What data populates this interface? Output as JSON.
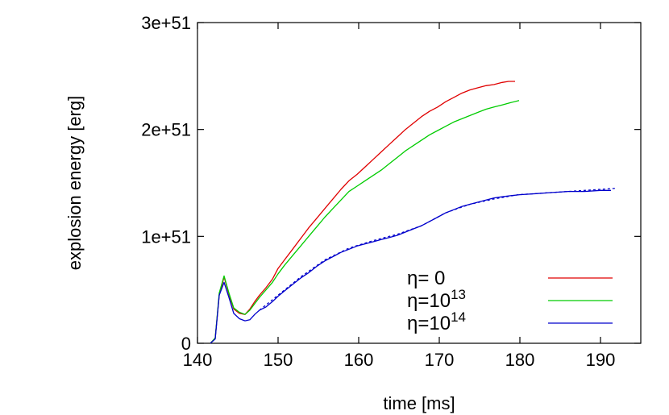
{
  "chart_data": {
    "type": "line",
    "title": "",
    "xlabel": "time [ms]",
    "ylabel": "explosion energy [erg]",
    "xlim": [
      140,
      195
    ],
    "ylim": [
      0,
      3e+51
    ],
    "xticks": [
      140,
      150,
      160,
      170,
      180,
      190
    ],
    "yticks": [
      {
        "value": 0,
        "label": "0"
      },
      {
        "value": 1e+51,
        "label": "1e+51"
      },
      {
        "value": 2e+51,
        "label": "2e+51"
      },
      {
        "value": 3e+51,
        "label": "3e+51"
      }
    ],
    "grid": false,
    "legend_position": "bottom-right",
    "series": [
      {
        "name": "η= 0",
        "label_parts": {
          "base": "η= 0",
          "sup": ""
        },
        "color": "#e00000",
        "dash": false,
        "x": [
          141.6,
          142.2,
          142.7,
          143.3,
          143.9,
          144.5,
          145.2,
          145.9,
          146.5,
          147.1,
          147.7,
          148.5,
          149.3,
          150.0,
          150.8,
          151.8,
          152.8,
          153.8,
          154.8,
          155.8,
          156.8,
          157.8,
          158.8,
          159.8,
          160.8,
          161.8,
          162.8,
          163.8,
          164.8,
          165.8,
          166.8,
          167.8,
          168.8,
          169.8,
          170.8,
          171.8,
          172.8,
          173.8,
          174.8,
          175.8,
          176.8,
          177.8,
          178.6,
          179.4
        ],
        "values": [
          0.0,
          5e+49,
          4.5e+50,
          6.2e+50,
          4.6e+50,
          3.2e+50,
          2.8e+50,
          2.7e+50,
          3.2e+50,
          3.9e+50,
          4.5e+50,
          5.2e+50,
          6e+50,
          7e+50,
          7.8e+50,
          8.8e+50,
          9.8e+50,
          1.08e+51,
          1.17e+51,
          1.26e+51,
          1.35e+51,
          1.44e+51,
          1.52e+51,
          1.58e+51,
          1.65e+51,
          1.72e+51,
          1.79e+51,
          1.86e+51,
          1.93e+51,
          2e+51,
          2.06e+51,
          2.12e+51,
          2.17e+51,
          2.21e+51,
          2.26e+51,
          2.3e+51,
          2.34e+51,
          2.37e+51,
          2.39e+51,
          2.41e+51,
          2.42e+51,
          2.44e+51,
          2.45e+51,
          2.45e+51
        ]
      },
      {
        "name": "η=10^13",
        "label_parts": {
          "base": "η=10",
          "sup": "13"
        },
        "color": "#00cc00",
        "dash": false,
        "x": [
          141.6,
          142.2,
          142.7,
          143.3,
          143.9,
          144.5,
          145.2,
          145.9,
          146.5,
          147.1,
          147.7,
          148.5,
          149.3,
          150.0,
          150.8,
          151.8,
          152.8,
          153.8,
          154.8,
          155.8,
          156.8,
          157.8,
          158.8,
          159.8,
          160.8,
          161.8,
          162.8,
          163.8,
          164.8,
          165.8,
          166.8,
          167.8,
          168.8,
          169.8,
          170.8,
          171.8,
          172.8,
          173.8,
          174.8,
          175.8,
          176.8,
          177.8,
          178.8,
          179.9
        ],
        "values": [
          0.0,
          5e+49,
          4.7e+50,
          6.3e+50,
          4.7e+50,
          3.3e+50,
          2.9e+50,
          2.7e+50,
          3.1e+50,
          3.7e+50,
          4.3e+50,
          5e+50,
          5.7e+50,
          6.5e+50,
          7.3e+50,
          8.2e+50,
          9.1e+50,
          1e+51,
          1.09e+51,
          1.18e+51,
          1.26e+51,
          1.34e+51,
          1.42e+51,
          1.47e+51,
          1.52e+51,
          1.57e+51,
          1.62e+51,
          1.68e+51,
          1.74e+51,
          1.8e+51,
          1.85e+51,
          1.9e+51,
          1.95e+51,
          1.99e+51,
          2.03e+51,
          2.07e+51,
          2.1e+51,
          2.13e+51,
          2.16e+51,
          2.19e+51,
          2.21e+51,
          2.23e+51,
          2.25e+51,
          2.27e+51
        ]
      },
      {
        "name": "η=10^14",
        "label_parts": {
          "base": "η=10",
          "sup": "14"
        },
        "color": "#0000cc",
        "dash": false,
        "x": [
          141.6,
          142.2,
          142.7,
          143.3,
          143.9,
          144.5,
          145.2,
          145.9,
          146.5,
          147.1,
          147.7,
          148.5,
          149.3,
          150.0,
          150.8,
          151.8,
          152.8,
          153.8,
          154.8,
          155.8,
          156.8,
          157.8,
          158.8,
          159.8,
          160.8,
          161.8,
          162.8,
          163.8,
          164.8,
          165.8,
          166.8,
          167.8,
          168.8,
          169.8,
          170.8,
          171.8,
          172.8,
          173.8,
          174.8,
          175.8,
          176.8,
          177.8,
          178.8,
          180.0,
          182.0,
          184.0,
          186.0,
          188.0,
          190.0,
          191.3
        ],
        "values": [
          0.0,
          4e+49,
          4.5e+50,
          5.7e+50,
          4.3e+50,
          2.8e+50,
          2.3e+50,
          2.1e+50,
          2.2e+50,
          2.7e+50,
          3.1e+50,
          3.4e+50,
          3.9e+50,
          4.4e+50,
          4.9e+50,
          5.5e+50,
          6.1e+50,
          6.6e+50,
          7.2e+50,
          7.7e+50,
          8.1e+50,
          8.5e+50,
          8.8e+50,
          9.1e+50,
          9.3e+50,
          9.5e+50,
          9.7e+50,
          9.9e+50,
          1.01e+51,
          1.04e+51,
          1.07e+51,
          1.1e+51,
          1.14e+51,
          1.18e+51,
          1.22e+51,
          1.25e+51,
          1.28e+51,
          1.3e+51,
          1.32e+51,
          1.34e+51,
          1.36e+51,
          1.37e+51,
          1.38e+51,
          1.39e+51,
          1.4e+51,
          1.41e+51,
          1.42e+51,
          1.42e+51,
          1.43e+51,
          1.43e+51
        ]
      },
      {
        "name": "",
        "label_parts": {
          "base": "",
          "sup": ""
        },
        "color": "#0000cc",
        "dash": true,
        "x": [
          147.7,
          150.0,
          152.8,
          155.8,
          158.8,
          161.8,
          164.8,
          167.8,
          170.8,
          173.8,
          176.8,
          179.8,
          182.0,
          184.0,
          186.0,
          188.0,
          190.0,
          192.0
        ],
        "values": [
          3.1e+50,
          4.5e+50,
          6.2e+50,
          7.8e+50,
          8.9e+50,
          9.6e+50,
          1.02e+51,
          1.1e+51,
          1.22e+51,
          1.3e+51,
          1.35e+51,
          1.39e+51,
          1.4e+51,
          1.41e+51,
          1.42e+51,
          1.43e+51,
          1.44e+51,
          1.45e+51
        ]
      }
    ]
  }
}
